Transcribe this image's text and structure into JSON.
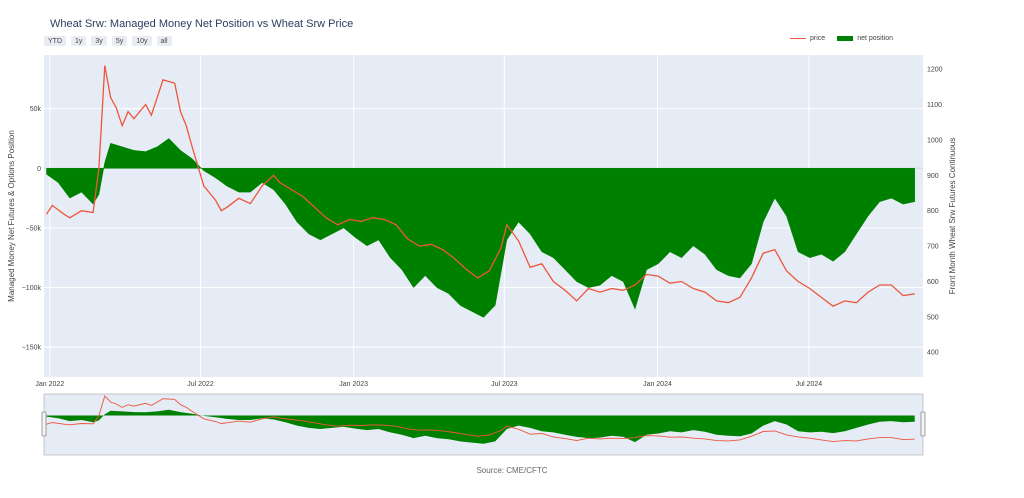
{
  "title": "Wheat Srw: Managed Money Net Position vs Wheat Srw Price",
  "range_buttons": [
    "YTD",
    "1y",
    "3y",
    "5y",
    "10y",
    "all"
  ],
  "legend": {
    "price": "price",
    "net": "net position"
  },
  "source": "Source: CME/CFTC",
  "colors": {
    "price": "#ef553b",
    "net": "#008000",
    "plot_bg": "#e5ecf6",
    "slider_mask": "#8a8a8a"
  },
  "chart_data": {
    "type": "area",
    "title": "Wheat Srw: Managed Money Net Position vs Wheat Srw Price",
    "x_ticks": [
      "Jan 2022",
      "Jul 2022",
      "Jan 2023",
      "Jul 2023",
      "Jan 2024",
      "Jul 2024"
    ],
    "x_tick_dates": [
      "2022-01-01",
      "2022-07-01",
      "2023-01-01",
      "2023-07-01",
      "2024-01-01",
      "2024-07-01"
    ],
    "x_range": [
      "2021-12-25",
      "2024-11-15"
    ],
    "y_left": {
      "label": "Managed Money Net Futures & Options Position",
      "range": [
        -175000,
        95000
      ],
      "ticks": [
        50000,
        0,
        -50000,
        -100000,
        -150000
      ],
      "tick_labels": [
        "50k",
        "0",
        "−50k",
        "−100k",
        "−150k"
      ]
    },
    "y_right": {
      "label": "Front Month Wheat Srw Futures Continuous",
      "range": [
        330,
        1240
      ],
      "ticks": [
        400,
        500,
        600,
        700,
        800,
        900,
        1000,
        1100,
        1200
      ],
      "tick_labels": [
        "400",
        "500",
        "600",
        "700",
        "800",
        "900",
        "1000",
        "1100",
        "1200"
      ]
    },
    "grid": true,
    "legend_position": "top-right",
    "series": [
      {
        "name": "net position",
        "axis": "left",
        "style": "area",
        "points": [
          [
            "2021-12-28",
            -5000
          ],
          [
            "2022-01-11",
            -12000
          ],
          [
            "2022-01-25",
            -25000
          ],
          [
            "2022-02-08",
            -20000
          ],
          [
            "2022-02-22",
            -30000
          ],
          [
            "2022-03-01",
            -22000
          ],
          [
            "2022-03-08",
            5000
          ],
          [
            "2022-03-15",
            21000
          ],
          [
            "2022-03-29",
            18000
          ],
          [
            "2022-04-12",
            15000
          ],
          [
            "2022-04-26",
            14000
          ],
          [
            "2022-05-10",
            18000
          ],
          [
            "2022-05-24",
            25000
          ],
          [
            "2022-06-07",
            15000
          ],
          [
            "2022-06-21",
            8000
          ],
          [
            "2022-07-05",
            -2000
          ],
          [
            "2022-07-19",
            -8000
          ],
          [
            "2022-08-02",
            -15000
          ],
          [
            "2022-08-16",
            -20000
          ],
          [
            "2022-08-30",
            -20000
          ],
          [
            "2022-09-13",
            -12000
          ],
          [
            "2022-09-27",
            -18000
          ],
          [
            "2022-10-11",
            -30000
          ],
          [
            "2022-10-25",
            -45000
          ],
          [
            "2022-11-08",
            -55000
          ],
          [
            "2022-11-22",
            -60000
          ],
          [
            "2022-12-06",
            -55000
          ],
          [
            "2022-12-20",
            -50000
          ],
          [
            "2023-01-03",
            -58000
          ],
          [
            "2023-01-17",
            -65000
          ],
          [
            "2023-01-31",
            -60000
          ],
          [
            "2023-02-14",
            -75000
          ],
          [
            "2023-02-28",
            -85000
          ],
          [
            "2023-03-14",
            -100000
          ],
          [
            "2023-03-28",
            -90000
          ],
          [
            "2023-04-11",
            -100000
          ],
          [
            "2023-04-25",
            -105000
          ],
          [
            "2023-05-09",
            -115000
          ],
          [
            "2023-05-23",
            -120000
          ],
          [
            "2023-06-06",
            -125000
          ],
          [
            "2023-06-20",
            -115000
          ],
          [
            "2023-07-04",
            -60000
          ],
          [
            "2023-07-18",
            -45000
          ],
          [
            "2023-08-01",
            -55000
          ],
          [
            "2023-08-15",
            -70000
          ],
          [
            "2023-08-29",
            -75000
          ],
          [
            "2023-09-12",
            -85000
          ],
          [
            "2023-09-26",
            -95000
          ],
          [
            "2023-10-10",
            -100000
          ],
          [
            "2023-10-24",
            -98000
          ],
          [
            "2023-11-07",
            -90000
          ],
          [
            "2023-11-21",
            -95000
          ],
          [
            "2023-12-05",
            -118000
          ],
          [
            "2023-12-19",
            -85000
          ],
          [
            "2024-01-02",
            -80000
          ],
          [
            "2024-01-16",
            -70000
          ],
          [
            "2024-01-30",
            -75000
          ],
          [
            "2024-02-13",
            -65000
          ],
          [
            "2024-02-27",
            -72000
          ],
          [
            "2024-03-12",
            -85000
          ],
          [
            "2024-03-26",
            -90000
          ],
          [
            "2024-04-09",
            -92000
          ],
          [
            "2024-04-23",
            -80000
          ],
          [
            "2024-05-07",
            -45000
          ],
          [
            "2024-05-21",
            -25000
          ],
          [
            "2024-06-04",
            -40000
          ],
          [
            "2024-06-18",
            -70000
          ],
          [
            "2024-07-02",
            -75000
          ],
          [
            "2024-07-16",
            -72000
          ],
          [
            "2024-07-30",
            -78000
          ],
          [
            "2024-08-13",
            -70000
          ],
          [
            "2024-08-27",
            -55000
          ],
          [
            "2024-09-10",
            -40000
          ],
          [
            "2024-09-24",
            -28000
          ],
          [
            "2024-10-08",
            -25000
          ],
          [
            "2024-10-22",
            -30000
          ],
          [
            "2024-11-05",
            -28000
          ]
        ]
      },
      {
        "name": "price",
        "axis": "right",
        "style": "line",
        "points": [
          [
            "2021-12-28",
            790
          ],
          [
            "2022-01-04",
            815
          ],
          [
            "2022-01-18",
            790
          ],
          [
            "2022-01-25",
            780
          ],
          [
            "2022-02-08",
            800
          ],
          [
            "2022-02-22",
            795
          ],
          [
            "2022-03-01",
            920
          ],
          [
            "2022-03-08",
            1210
          ],
          [
            "2022-03-15",
            1120
          ],
          [
            "2022-03-22",
            1090
          ],
          [
            "2022-03-29",
            1040
          ],
          [
            "2022-04-05",
            1080
          ],
          [
            "2022-04-12",
            1060
          ],
          [
            "2022-04-19",
            1080
          ],
          [
            "2022-04-26",
            1100
          ],
          [
            "2022-05-03",
            1070
          ],
          [
            "2022-05-17",
            1170
          ],
          [
            "2022-05-31",
            1160
          ],
          [
            "2022-06-07",
            1080
          ],
          [
            "2022-06-14",
            1040
          ],
          [
            "2022-06-21",
            980
          ],
          [
            "2022-07-05",
            870
          ],
          [
            "2022-07-19",
            830
          ],
          [
            "2022-07-26",
            800
          ],
          [
            "2022-08-02",
            810
          ],
          [
            "2022-08-16",
            835
          ],
          [
            "2022-08-30",
            820
          ],
          [
            "2022-09-13",
            870
          ],
          [
            "2022-09-27",
            900
          ],
          [
            "2022-10-04",
            880
          ],
          [
            "2022-10-18",
            860
          ],
          [
            "2022-11-01",
            840
          ],
          [
            "2022-11-15",
            810
          ],
          [
            "2022-11-29",
            780
          ],
          [
            "2022-12-13",
            760
          ],
          [
            "2022-12-27",
            775
          ],
          [
            "2023-01-10",
            770
          ],
          [
            "2023-01-24",
            780
          ],
          [
            "2023-02-07",
            775
          ],
          [
            "2023-02-21",
            760
          ],
          [
            "2023-03-07",
            720
          ],
          [
            "2023-03-21",
            700
          ],
          [
            "2023-04-04",
            705
          ],
          [
            "2023-04-18",
            690
          ],
          [
            "2023-05-02",
            665
          ],
          [
            "2023-05-16",
            635
          ],
          [
            "2023-05-30",
            610
          ],
          [
            "2023-06-13",
            630
          ],
          [
            "2023-06-27",
            695
          ],
          [
            "2023-07-04",
            760
          ],
          [
            "2023-07-18",
            715
          ],
          [
            "2023-08-01",
            640
          ],
          [
            "2023-08-15",
            650
          ],
          [
            "2023-08-29",
            600
          ],
          [
            "2023-09-12",
            575
          ],
          [
            "2023-09-26",
            545
          ],
          [
            "2023-10-10",
            580
          ],
          [
            "2023-10-24",
            570
          ],
          [
            "2023-11-07",
            580
          ],
          [
            "2023-11-21",
            575
          ],
          [
            "2023-12-05",
            590
          ],
          [
            "2023-12-19",
            620
          ],
          [
            "2024-01-02",
            615
          ],
          [
            "2024-01-16",
            595
          ],
          [
            "2024-01-30",
            600
          ],
          [
            "2024-02-13",
            580
          ],
          [
            "2024-02-27",
            570
          ],
          [
            "2024-03-12",
            545
          ],
          [
            "2024-03-26",
            540
          ],
          [
            "2024-04-09",
            555
          ],
          [
            "2024-04-23",
            610
          ],
          [
            "2024-05-07",
            680
          ],
          [
            "2024-05-21",
            690
          ],
          [
            "2024-06-04",
            630
          ],
          [
            "2024-06-18",
            600
          ],
          [
            "2024-07-02",
            580
          ],
          [
            "2024-07-16",
            555
          ],
          [
            "2024-07-30",
            530
          ],
          [
            "2024-08-13",
            545
          ],
          [
            "2024-08-27",
            540
          ],
          [
            "2024-09-10",
            570
          ],
          [
            "2024-09-24",
            590
          ],
          [
            "2024-10-08",
            590
          ],
          [
            "2024-10-22",
            560
          ],
          [
            "2024-11-05",
            565
          ]
        ]
      }
    ],
    "range_slider": {
      "visible": true,
      "selected_from": "2021-12-25",
      "selected_to": "2024-11-15"
    }
  }
}
